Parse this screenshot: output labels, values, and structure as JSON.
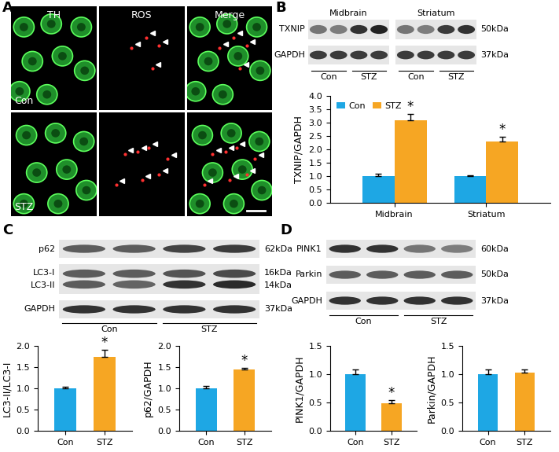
{
  "panel_labels": [
    "A",
    "B",
    "C",
    "D"
  ],
  "images": {
    "columns": [
      "TH",
      "ROS",
      "Merge"
    ],
    "rows": [
      "Con",
      "STZ"
    ]
  },
  "blots": {
    "B": {
      "groups": [
        "Midbrain",
        "Striatum"
      ],
      "rows": [
        {
          "names": [
            "TXNIP"
          ],
          "kda": [
            "50kDa"
          ]
        },
        {
          "names": [
            "GAPDH"
          ],
          "kda": [
            "37kDa"
          ]
        }
      ],
      "lanes": [
        "Con",
        "STZ"
      ]
    },
    "C": {
      "rows": [
        {
          "names": [
            "p62"
          ],
          "kda": [
            "62kDa"
          ]
        },
        {
          "names": [
            "LC3-I",
            "LC3-II"
          ],
          "kda": [
            "16kDa",
            "14kDa"
          ]
        },
        {
          "names": [
            "GAPDH"
          ],
          "kda": [
            "37kDa"
          ]
        }
      ],
      "lanes": [
        "Con",
        "STZ"
      ]
    },
    "D": {
      "rows": [
        {
          "names": [
            "PINK1"
          ],
          "kda": [
            "60kDa"
          ]
        },
        {
          "names": [
            "Parkin"
          ],
          "kda": [
            "50kDa"
          ]
        },
        {
          "names": [
            "GAPDH"
          ],
          "kda": [
            "37kDa"
          ]
        }
      ],
      "lanes": [
        "Con",
        "STZ"
      ]
    }
  },
  "chart_data": [
    {
      "type": "bar",
      "ylabel": "TXNIP/GAPDH",
      "categories": [
        "Midbrain",
        "Striatum"
      ],
      "series": [
        {
          "name": "Con",
          "color": "#1ea7e4",
          "values": [
            1.0,
            1.0
          ],
          "errors": [
            0.08,
            0.03
          ]
        },
        {
          "name": "STZ",
          "color": "#f6a623",
          "values": [
            3.08,
            2.28
          ],
          "errors": [
            0.25,
            0.2
          ]
        }
      ],
      "ylim": [
        0,
        4
      ],
      "yticks": [
        {
          "value": 0,
          "label": "0.0"
        },
        {
          "value": 0.5,
          "label": "0.5"
        },
        {
          "value": 1,
          "label": "1.0"
        },
        {
          "value": 1.5,
          "label": "1.5"
        },
        {
          "value": 2,
          "label": "2.0"
        },
        {
          "value": 2.5,
          "label": "2.5"
        },
        {
          "value": 3,
          "label": "3.0"
        },
        {
          "value": 3.5,
          "label": "3.5"
        },
        {
          "value": 4,
          "label": "4.0"
        }
      ],
      "legend": "upper left",
      "annotations": [
        {
          "text": "*",
          "series": "STZ",
          "category": "Midbrain"
        },
        {
          "text": "*",
          "series": "STZ",
          "category": "Striatum"
        }
      ]
    },
    {
      "type": "bar",
      "ylabel": "LC3-II/LC3-I",
      "categories": [
        "Con",
        "STZ"
      ],
      "values": [
        1.0,
        1.75
      ],
      "errors": [
        0.03,
        0.15
      ],
      "colors": [
        "#1ea7e4",
        "#f6a623"
      ],
      "ylim": [
        0,
        2
      ],
      "yticks": [
        {
          "value": 0,
          "label": "0.0"
        },
        {
          "value": 0.5,
          "label": "0.5"
        },
        {
          "value": 1,
          "label": "1.0"
        },
        {
          "value": 1.5,
          "label": "1.5"
        },
        {
          "value": 2,
          "label": "2.0"
        }
      ],
      "annotations": [
        {
          "text": "*",
          "category": "STZ"
        }
      ]
    },
    {
      "type": "bar",
      "ylabel": "p62/GAPDH",
      "categories": [
        "Con",
        "STZ"
      ],
      "values": [
        1.0,
        1.45
      ],
      "errors": [
        0.06,
        0.04
      ],
      "colors": [
        "#1ea7e4",
        "#f6a623"
      ],
      "ylim": [
        0,
        2
      ],
      "yticks": [
        {
          "value": 0,
          "label": "0.0"
        },
        {
          "value": 0.5,
          "label": "0.5"
        },
        {
          "value": 1,
          "label": "1.0"
        },
        {
          "value": 1.5,
          "label": "1.5"
        },
        {
          "value": 2,
          "label": "2.0"
        }
      ],
      "annotations": [
        {
          "text": "*",
          "category": "STZ"
        }
      ]
    },
    {
      "type": "bar",
      "ylabel": "PINK1/GAPDH",
      "categories": [
        "Con",
        "STZ"
      ],
      "values": [
        1.0,
        0.48
      ],
      "errors": [
        0.08,
        0.06
      ],
      "colors": [
        "#1ea7e4",
        "#f6a623"
      ],
      "ylim": [
        0,
        1.5
      ],
      "yticks": [
        {
          "value": 0,
          "label": "0.0"
        },
        {
          "value": 0.5,
          "label": "0.5"
        },
        {
          "value": 1,
          "label": "1.0"
        },
        {
          "value": 1.5,
          "label": "1.5"
        }
      ],
      "annotations": [
        {
          "text": "*",
          "category": "STZ"
        }
      ]
    },
    {
      "type": "bar",
      "ylabel": "Parkin/GAPDH",
      "categories": [
        "Con",
        "STZ"
      ],
      "values": [
        1.0,
        1.03
      ],
      "errors": [
        0.09,
        0.06
      ],
      "colors": [
        "#1ea7e4",
        "#f6a623"
      ],
      "ylim": [
        0,
        1.5
      ],
      "yticks": [
        {
          "value": 0,
          "label": "0.0"
        },
        {
          "value": 0.5,
          "label": "0.5"
        },
        {
          "value": 1,
          "label": "1.0"
        },
        {
          "value": 1.5,
          "label": "1.5"
        }
      ]
    }
  ]
}
